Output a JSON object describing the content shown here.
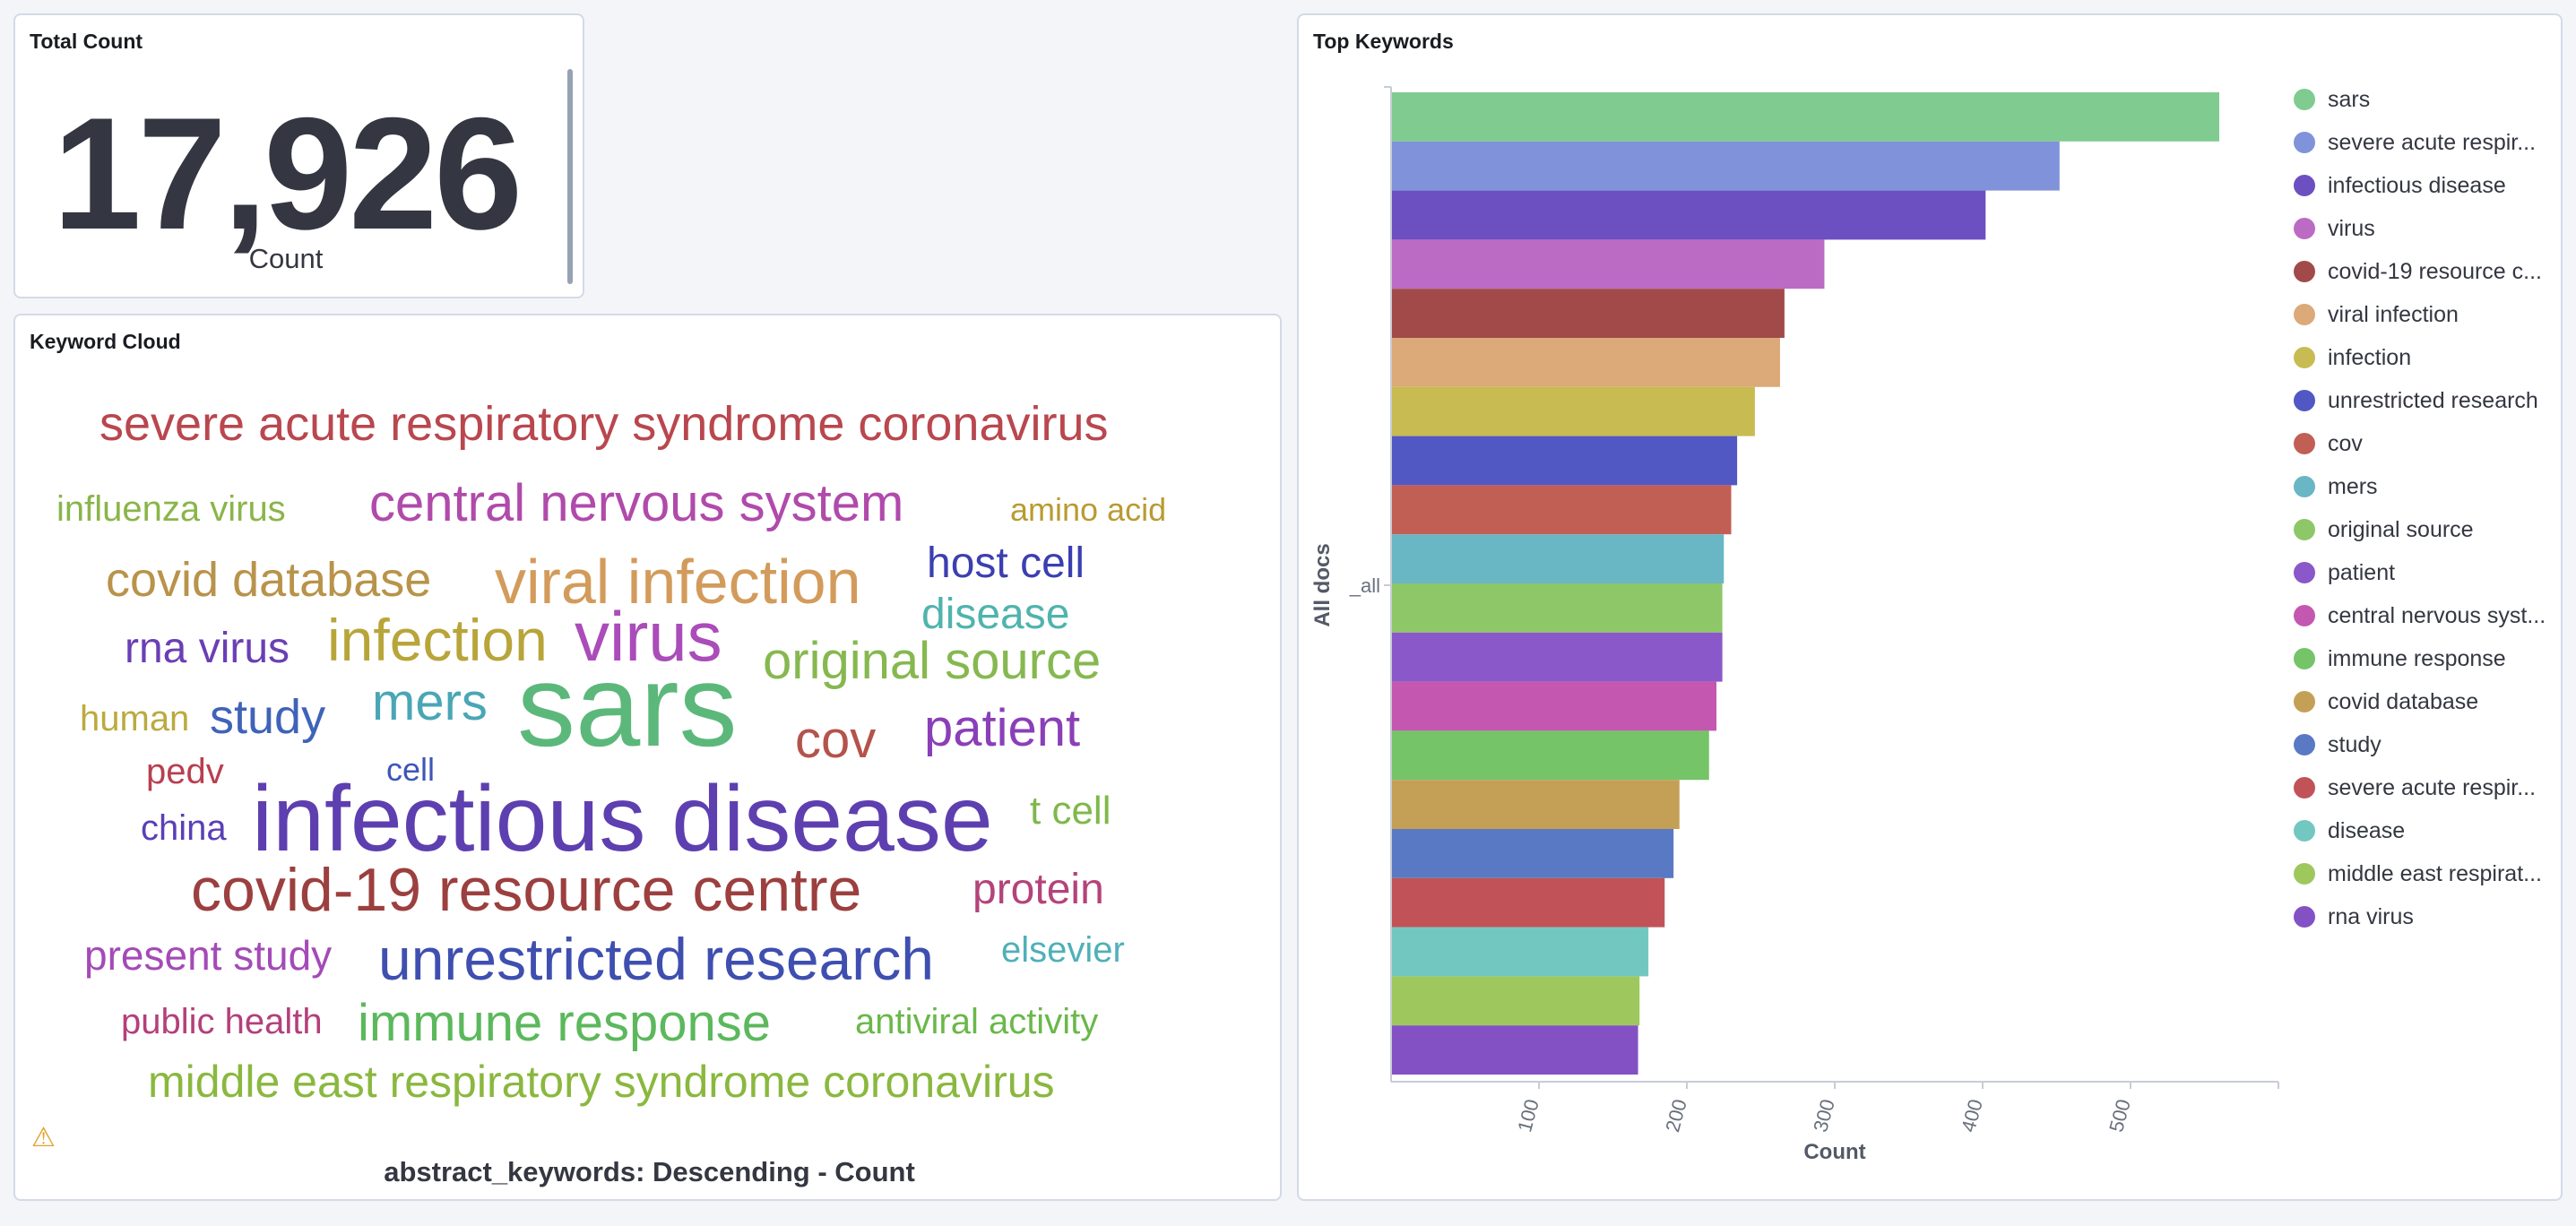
{
  "total_panel": {
    "title": "Total Count",
    "value": "17,926",
    "label": "Count"
  },
  "cloud_panel": {
    "title": "Keyword Cloud",
    "caption": "abstract_keywords: Descending - Count",
    "warning_icon": "warning-icon",
    "words": [
      {
        "text": "severe acute respiratory syndrome coronavirus",
        "color": "#b9474e"
      },
      {
        "text": "influenza virus",
        "color": "#8ab549"
      },
      {
        "text": "central nervous system",
        "color": "#b04aab"
      },
      {
        "text": "amino acid",
        "color": "#b89b33"
      },
      {
        "text": "covid database",
        "color": "#b8934a"
      },
      {
        "text": "viral infection",
        "color": "#d39b5b"
      },
      {
        "text": "host cell",
        "color": "#3b3fb0"
      },
      {
        "text": "disease",
        "color": "#4fb4ad"
      },
      {
        "text": "rna virus",
        "color": "#6a3fb4"
      },
      {
        "text": "infection",
        "color": "#b8a53a"
      },
      {
        "text": "virus",
        "color": "#aa4cb9"
      },
      {
        "text": "original source",
        "color": "#86b84f"
      },
      {
        "text": "human",
        "color": "#bbaa3f"
      },
      {
        "text": "study",
        "color": "#3f63b8"
      },
      {
        "text": "mers",
        "color": "#4aa6b5"
      },
      {
        "text": "sars",
        "color": "#5cb87a"
      },
      {
        "text": "cov",
        "color": "#b4534a"
      },
      {
        "text": "patient",
        "color": "#8a3fb8"
      },
      {
        "text": "pedv",
        "color": "#b83f50"
      },
      {
        "text": "cell",
        "color": "#3f55b8"
      },
      {
        "text": "china",
        "color": "#5a3fb8"
      },
      {
        "text": "infectious disease",
        "color": "#5e3fb0"
      },
      {
        "text": "t cell",
        "color": "#7fb84a"
      },
      {
        "text": "covid-19 resource centre",
        "color": "#9c3f3f"
      },
      {
        "text": "protein",
        "color": "#b4437a"
      },
      {
        "text": "present study",
        "color": "#a44ab8"
      },
      {
        "text": "unrestricted research",
        "color": "#3f4fb0"
      },
      {
        "text": "elsevier",
        "color": "#4fb0b8"
      },
      {
        "text": "public health",
        "color": "#b43f7a"
      },
      {
        "text": "immune response",
        "color": "#5cb85c"
      },
      {
        "text": "antiviral activity",
        "color": "#6ab84a"
      },
      {
        "text": "middle east respiratory syndrome coronavirus",
        "color": "#8ab83f"
      }
    ]
  },
  "chart_panel": {
    "title": "Top Keywords",
    "chart_data": {
      "type": "bar",
      "orientation": "horizontal",
      "categories": [
        "sars",
        "severe acute respiratory syndrome coronavirus",
        "infectious disease",
        "virus",
        "covid-19 resource centre",
        "viral infection",
        "infection",
        "unrestricted research",
        "cov",
        "mers",
        "original source",
        "patient",
        "central nervous system",
        "immune response",
        "covid database",
        "study",
        "severe acute respiratory syndrome",
        "disease",
        "middle east respiratory syndrome coronavirus",
        "rna virus"
      ],
      "category_labels": [
        "sars",
        "severe acute respir...",
        "infectious disease",
        "virus",
        "covid-19 resource c...",
        "viral infection",
        "infection",
        "unrestricted research",
        "cov",
        "mers",
        "original source",
        "patient",
        "central nervous syst...",
        "immune response",
        "covid database",
        "study",
        "severe acute respir...",
        "disease",
        "middle east respirat...",
        "rna virus"
      ],
      "values": [
        560,
        452,
        402,
        293,
        266,
        263,
        246,
        234,
        230,
        225,
        224,
        224,
        220,
        215,
        195,
        191,
        185,
        174,
        168,
        167
      ],
      "colors": [
        "#7fcb90",
        "#8092d9",
        "#6c4fc1",
        "#bb6bc4",
        "#a24a4a",
        "#dca978",
        "#c8bb51",
        "#5158c4",
        "#c15f55",
        "#69b6c4",
        "#8dc768",
        "#8a58c9",
        "#c458b0",
        "#75c468",
        "#c4a056",
        "#5a79c4",
        "#c15358",
        "#72c8c0",
        "#9ec85d",
        "#8451c4"
      ],
      "y_category": "_all",
      "ylabel": "All docs",
      "xlabel": "Count",
      "xticks": [
        100,
        200,
        300,
        400,
        500
      ],
      "xlim": [
        0,
        600
      ]
    }
  }
}
